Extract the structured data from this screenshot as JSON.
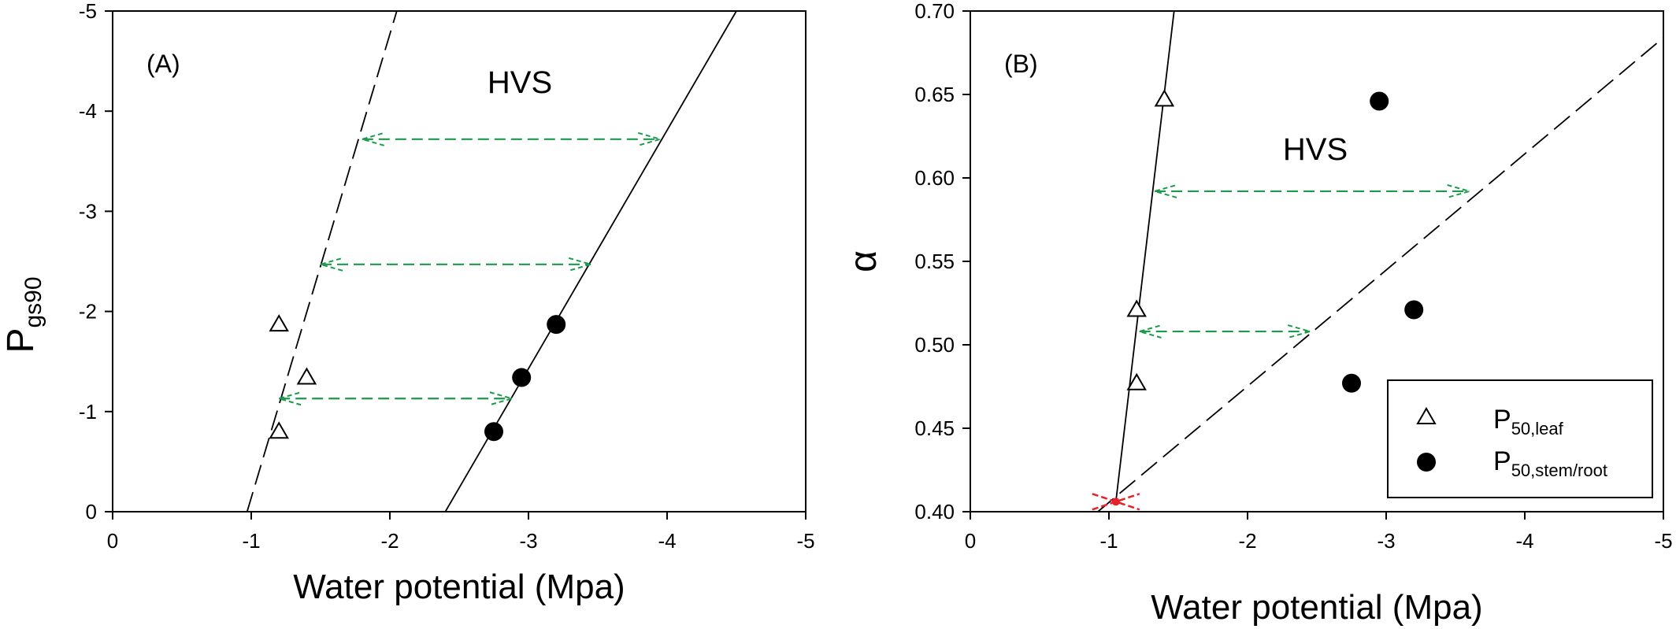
{
  "chart_data": [
    {
      "panel": "(A)",
      "type": "scatter",
      "title": "",
      "xlabel": "Water potential (Mpa)",
      "ylabel_main": "P",
      "ylabel_sub": "gs90",
      "xlim": [
        0,
        -5
      ],
      "ylim": [
        0,
        -5
      ],
      "xticks": [
        0,
        -1,
        -2,
        -3,
        -4,
        -5
      ],
      "yticks": [
        0,
        -1,
        -2,
        -3,
        -4,
        -5
      ],
      "region_label": "HVS",
      "series": [
        {
          "marker": "open-triangle",
          "points": [
            [
              -1.2,
              -1.87
            ],
            [
              -1.4,
              -1.34
            ],
            [
              -1.2,
              -0.8
            ]
          ]
        },
        {
          "marker": "filled-circle",
          "points": [
            [
              -3.2,
              -1.87
            ],
            [
              -2.95,
              -1.34
            ],
            [
              -2.75,
              -0.8
            ]
          ]
        }
      ],
      "lines": [
        {
          "style": "dashed",
          "from": [
            -0.97,
            0
          ],
          "to": [
            -2.05,
            -5
          ]
        },
        {
          "style": "solid",
          "from": [
            -2.4,
            0
          ],
          "to": [
            -4.5,
            -5
          ]
        }
      ],
      "arrows": [
        {
          "from": [
            -1.8,
            -3.72
          ],
          "to": [
            -3.95,
            -3.72
          ]
        },
        {
          "from": [
            -1.5,
            -2.47
          ],
          "to": [
            -3.45,
            -2.47
          ]
        },
        {
          "from": [
            -1.2,
            -1.13
          ],
          "to": [
            -2.88,
            -1.13
          ]
        }
      ]
    },
    {
      "panel": "(B)",
      "type": "scatter",
      "title": "",
      "xlabel": "Water potential (Mpa)",
      "ylabel": "α",
      "xlim": [
        0,
        -5
      ],
      "ylim": [
        0.4,
        0.7
      ],
      "xticks": [
        0,
        -1,
        -2,
        -3,
        -4,
        -5
      ],
      "yticks": [
        "0.40",
        "0.45",
        "0.50",
        "0.55",
        "0.60",
        "0.65",
        "0.70"
      ],
      "region_label": "HVS",
      "series": [
        {
          "marker": "open-triangle",
          "label_main": "P",
          "label_sub": "50,leaf",
          "points": [
            [
              -1.4,
              0.647
            ],
            [
              -1.2,
              0.521
            ],
            [
              -1.2,
              0.477
            ]
          ]
        },
        {
          "marker": "filled-circle",
          "label_main": "P",
          "label_sub": "50,stem/root",
          "points": [
            [
              -2.95,
              0.646
            ],
            [
              -3.2,
              0.521
            ],
            [
              -2.75,
              0.477
            ]
          ]
        }
      ],
      "lines": [
        {
          "style": "solid",
          "from": [
            -1.05,
            0.406
          ],
          "to": [
            -1.47,
            0.7
          ]
        },
        {
          "style": "dashed",
          "from": [
            -0.92,
            0.4
          ],
          "to": [
            -5.0,
            0.684
          ]
        }
      ],
      "intersection_mark": {
        "at": [
          -1.05,
          0.406
        ],
        "color": "#e8202a"
      },
      "arrows": [
        {
          "from": [
            -1.33,
            0.592
          ],
          "to": [
            -3.6,
            0.592
          ]
        },
        {
          "from": [
            -1.22,
            0.508
          ],
          "to": [
            -2.45,
            0.508
          ]
        }
      ],
      "legend_position": "bottom-right"
    }
  ],
  "colors": {
    "arrow": "#1a9a4a",
    "marker": "#000000",
    "intersection": "#e8202a"
  }
}
